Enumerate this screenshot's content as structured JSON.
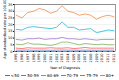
{
  "chart_data": {
    "type": "line",
    "x": [
      1995,
      1996,
      1997,
      1998,
      1999,
      2000,
      2001,
      2002,
      2003,
      2004,
      2005,
      2006,
      2007,
      2008,
      2009,
      2010,
      2011,
      2012
    ],
    "series": [
      {
        "name": "<50",
        "color": "#4472c4",
        "values": [
          1.0,
          1.0,
          1.1,
          0.9,
          1.0,
          1.0,
          0.9,
          1.0,
          1.1,
          1.0,
          1.0,
          0.9,
          1.0,
          1.0,
          0.9,
          1.0,
          1.0,
          1.0
        ]
      },
      {
        "name": "50-59",
        "color": "#ff4040",
        "values": [
          2.5,
          2.2,
          2.8,
          2.5,
          2.5,
          2.5,
          2.8,
          2.5,
          2.5,
          2.8,
          2.2,
          2.5,
          3.0,
          2.5,
          2.5,
          2.5,
          2.5,
          2.5
        ]
      },
      {
        "name": "60-69",
        "color": "#70ad47",
        "values": [
          5.5,
          5.0,
          6.5,
          5.5,
          5.5,
          5.0,
          4.5,
          5.5,
          7.0,
          7.0,
          6.0,
          5.0,
          6.0,
          5.5,
          5.0,
          5.5,
          5.0,
          5.0
        ]
      },
      {
        "name": "70-79",
        "color": "#9966cc",
        "values": [
          9.0,
          8.5,
          9.5,
          9.5,
          10.0,
          9.0,
          9.5,
          9.5,
          10.5,
          9.5,
          9.5,
          9.0,
          9.5,
          9.0,
          8.5,
          9.0,
          9.0,
          9.0
        ]
      },
      {
        "name": "75-79",
        "color": "#00b0d8",
        "values": [
          16.5,
          16.0,
          18.0,
          18.5,
          18.0,
          17.5,
          17.0,
          18.0,
          22.0,
          18.0,
          18.0,
          16.0,
          16.5,
          17.0,
          14.0,
          15.0,
          16.0,
          15.5
        ]
      },
      {
        "name": "80+",
        "color": "#ed7d31",
        "values": [
          27.0,
          25.0,
          29.0,
          30.0,
          32.0,
          31.0,
          28.5,
          30.0,
          34.0,
          30.0,
          29.0,
          27.0,
          28.0,
          27.0,
          24.0,
          26.0,
          27.0,
          26.0
        ]
      }
    ],
    "xlabel": "Year of Diagnosis",
    "ylabel": "Age standardised rate per 100,000",
    "xlim": [
      1994.7,
      2012.3
    ],
    "xticks": [
      1995,
      1996,
      1997,
      1998,
      1999,
      2000,
      2001,
      2002,
      2003,
      2004,
      2005,
      2006,
      2007,
      2008,
      2009,
      2010,
      2011,
      2012
    ],
    "ylim": [
      0,
      35
    ],
    "yticks": [
      0,
      5,
      10,
      15,
      20,
      25,
      30,
      35
    ],
    "grid": true,
    "legend": "bottom"
  }
}
